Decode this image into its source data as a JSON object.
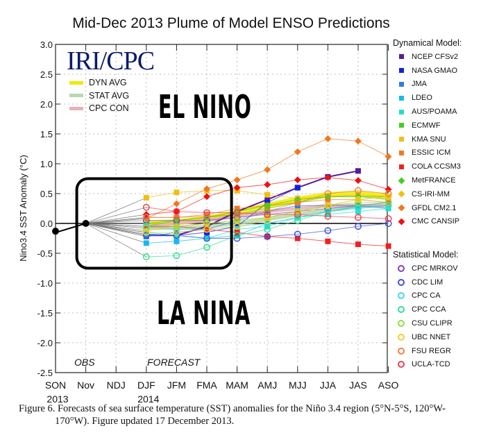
{
  "title": "Mid-Dec 2013 Plume of Model ENSO Predictions",
  "brand": "IRI/CPC",
  "annotations": {
    "el_nino": "EL NINO",
    "la_nina": "LA NINA",
    "obs": "OBS",
    "forecast": "FORECAST"
  },
  "avg_legend": [
    {
      "label": "DYN AVG",
      "color": "#f2ea00"
    },
    {
      "label": "STAT AVG",
      "color": "#b8d8b0"
    },
    {
      "label": "CPC CON",
      "color": "#e8b0b8"
    }
  ],
  "legend": {
    "dynamical_header": "Dynamical Model:",
    "statistical_header": "Statistical Model:"
  },
  "caption": {
    "line1": "Figure  6. Forecasts of sea surface temperature (SST) anomalies for the Niño 3.4 region (5°N-5°S, 120°W-",
    "line2": "170°W).  Figure updated 17 December 2013."
  },
  "chart_data": {
    "type": "line",
    "title": "Mid-Dec 2013 Plume of Model ENSO Predictions",
    "xlabel": "",
    "ylabel": "Nino3.4 SST Anomaly (°C)",
    "categories": [
      "SON",
      "Nov",
      "NDJ",
      "DJF",
      "JFM",
      "FMA",
      "MAM",
      "AMJ",
      "MJJ",
      "JJA",
      "JAS",
      "ASO"
    ],
    "year_labels": [
      {
        "category": "SON",
        "label": "2013"
      },
      {
        "category": "DJF",
        "label": "2014"
      }
    ],
    "yticks": [
      "3.0",
      "2.5",
      "2.0",
      "1.5",
      "1.0",
      "0.5",
      "0.0",
      "-0.5",
      "-1.0",
      "-1.5",
      "-2.0",
      "-2.5"
    ],
    "ylim": [
      -2.5,
      3.0
    ],
    "grid": true,
    "observed": {
      "name": "OBS",
      "x": [
        "SON",
        "Nov"
      ],
      "values": [
        -0.13,
        0.0
      ]
    },
    "series": [
      {
        "name": "NCEP CFSv2",
        "group": "dynamical",
        "marker": "square",
        "color": "#5a1a9a",
        "values": [
          null,
          null,
          null,
          -0.2,
          -0.2,
          -0.05,
          0.2,
          0.4,
          0.6,
          0.78,
          0.88,
          null
        ]
      },
      {
        "name": "NASA GMAO",
        "group": "dynamical",
        "marker": "square",
        "color": "#1020e0",
        "values": [
          null,
          null,
          null,
          -0.18,
          -0.2,
          -0.15,
          -0.05,
          0.35,
          0.6,
          null,
          null,
          null
        ]
      },
      {
        "name": "JMA",
        "group": "dynamical",
        "marker": "square",
        "color": "#2a80e0",
        "values": [
          null,
          null,
          null,
          -0.22,
          -0.15,
          -0.1,
          0.05,
          0.2,
          0.3,
          0.3,
          0.3,
          0.25
        ]
      },
      {
        "name": "LDEO",
        "group": "dynamical",
        "marker": "square",
        "color": "#18b8f0",
        "values": [
          null,
          null,
          null,
          -0.33,
          -0.3,
          -0.25,
          -0.2,
          0.0,
          0.1,
          0.2,
          0.28,
          0.3
        ]
      },
      {
        "name": "AUS/POAMA",
        "group": "dynamical",
        "marker": "square",
        "color": "#20e0c8",
        "values": [
          null,
          null,
          null,
          -0.15,
          -0.2,
          -0.25,
          -0.1,
          -0.05,
          0.1,
          0.15,
          0.2,
          0.25
        ]
      },
      {
        "name": "ECMWF",
        "group": "dynamical",
        "marker": "square",
        "color": "#40d020",
        "values": [
          null,
          null,
          null,
          -0.05,
          0.05,
          0.1,
          0.15,
          0.25,
          0.35,
          0.45,
          0.45,
          0.4
        ]
      },
      {
        "name": "KMA SNU",
        "group": "dynamical",
        "marker": "square",
        "color": "#f0c010",
        "values": [
          null,
          null,
          null,
          0.43,
          0.52,
          0.55,
          0.55,
          0.48,
          0.42,
          0.45,
          0.48,
          0.45
        ]
      },
      {
        "name": "ESSIC ICM",
        "group": "dynamical",
        "marker": "square",
        "color": "#f07820",
        "values": [
          null,
          null,
          null,
          0.1,
          0.1,
          0.15,
          0.25,
          0.3,
          0.35,
          0.4,
          0.4,
          0.35
        ]
      },
      {
        "name": "COLA CCSM3",
        "group": "dynamical",
        "marker": "square",
        "color": "#f02020",
        "values": [
          null,
          null,
          null,
          -0.05,
          -0.05,
          -0.1,
          -0.15,
          -0.22,
          -0.25,
          -0.3,
          -0.35,
          -0.38
        ]
      },
      {
        "name": "MetFRANCE",
        "group": "dynamical",
        "marker": "diamond",
        "color": "#40d020",
        "values": [
          null,
          null,
          null,
          0.0,
          0.05,
          0.1,
          0.2,
          0.3,
          0.4,
          0.45,
          0.45,
          0.45
        ]
      },
      {
        "name": "CS-IRI-MM",
        "group": "dynamical",
        "marker": "diamond",
        "color": "#f0c010",
        "values": [
          null,
          null,
          null,
          -0.12,
          -0.05,
          0.0,
          0.05,
          0.1,
          0.2,
          0.3,
          0.4,
          0.45
        ]
      },
      {
        "name": "GFDL CM2.1",
        "group": "dynamical",
        "marker": "diamond",
        "color": "#f07820",
        "values": [
          null,
          null,
          null,
          0.08,
          0.33,
          0.58,
          0.73,
          0.9,
          1.2,
          1.42,
          1.38,
          1.12
        ]
      },
      {
        "name": "CMC CANSIP",
        "group": "dynamical",
        "marker": "diamond",
        "color": "#f01010",
        "values": [
          null,
          null,
          null,
          0.15,
          0.2,
          0.45,
          0.6,
          0.65,
          0.73,
          0.77,
          0.72,
          0.57
        ]
      },
      {
        "name": "CPC MRKOV",
        "group": "statistical",
        "marker": "circle",
        "color": "#8040c0",
        "values": [
          null,
          null,
          null,
          0.05,
          0.05,
          0.05,
          0.1,
          0.15,
          0.2,
          0.25,
          0.3,
          0.35
        ]
      },
      {
        "name": "CDC LIM",
        "group": "statistical",
        "marker": "circle",
        "color": "#4050e0",
        "values": [
          null,
          null,
          null,
          -0.2,
          -0.2,
          -0.25,
          -0.25,
          -0.22,
          -0.18,
          -0.12,
          -0.05,
          0.0
        ]
      },
      {
        "name": "CPC CA",
        "group": "statistical",
        "marker": "circle",
        "color": "#40d8f0",
        "values": [
          null,
          null,
          null,
          -0.05,
          -0.1,
          -0.1,
          -0.05,
          0.0,
          0.1,
          0.2,
          0.25,
          0.3
        ]
      },
      {
        "name": "CPC CCA",
        "group": "statistical",
        "marker": "circle",
        "color": "#30e090",
        "values": [
          null,
          null,
          null,
          -0.56,
          -0.54,
          -0.4,
          -0.2,
          -0.1,
          0.05,
          0.2,
          0.3,
          0.35
        ]
      },
      {
        "name": "CSU CLIPR",
        "group": "statistical",
        "marker": "circle",
        "color": "#90e040",
        "values": [
          null,
          null,
          null,
          -0.08,
          -0.05,
          0.0,
          0.05,
          0.1,
          0.2,
          0.3,
          0.35,
          0.35
        ]
      },
      {
        "name": "UBC NNET",
        "group": "statistical",
        "marker": "circle",
        "color": "#f0d030",
        "values": [
          null,
          null,
          null,
          -0.15,
          -0.15,
          -0.1,
          -0.05,
          0.05,
          0.15,
          0.3,
          0.4,
          0.45
        ]
      },
      {
        "name": "FSU REGR",
        "group": "statistical",
        "marker": "circle",
        "color": "#f08040",
        "values": [
          null,
          null,
          null,
          0.1,
          0.1,
          0.12,
          0.15,
          0.2,
          0.35,
          0.5,
          0.55,
          0.5
        ]
      },
      {
        "name": "UCLA-TCD",
        "group": "statistical",
        "marker": "circle",
        "color": "#f04050",
        "values": [
          null,
          null,
          null,
          0.27,
          0.2,
          0.18,
          0.18,
          0.15,
          0.15,
          0.12,
          0.1,
          0.08
        ]
      }
    ],
    "averages": [
      {
        "name": "DYN AVG",
        "color": "#f2ea00",
        "values": [
          null,
          null,
          null,
          0.0,
          0.02,
          0.08,
          0.18,
          0.3,
          0.4,
          0.48,
          0.5,
          0.45
        ]
      },
      {
        "name": "STAT AVG",
        "color": "#b8d8b0",
        "values": [
          null,
          null,
          null,
          -0.08,
          -0.08,
          -0.05,
          0.0,
          0.07,
          0.15,
          0.22,
          0.28,
          0.3
        ]
      },
      {
        "name": "CPC CON",
        "color": "#e8b0b8",
        "values": [
          null,
          null,
          null,
          -0.05,
          0.0,
          0.05,
          0.12,
          0.2,
          0.25,
          0.3,
          0.3,
          0.3
        ]
      }
    ],
    "highlight_box": {
      "x_from": "Nov",
      "x_to": "MAM",
      "y_from": -0.75,
      "y_to": 0.75
    }
  }
}
